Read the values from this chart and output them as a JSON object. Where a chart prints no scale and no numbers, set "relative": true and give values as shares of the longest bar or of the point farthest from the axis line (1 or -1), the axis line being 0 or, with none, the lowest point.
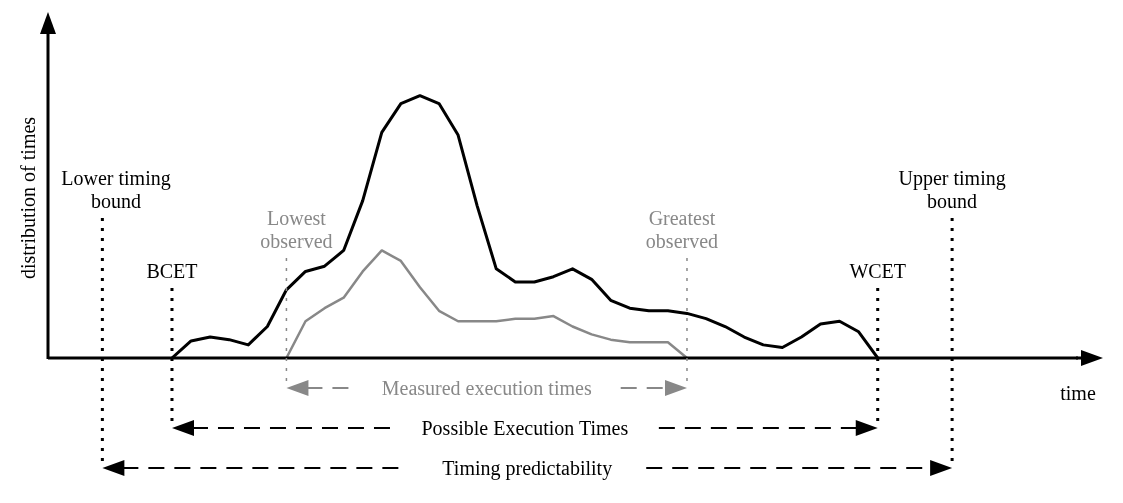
{
  "chart_data": {
    "type": "line",
    "relative": true,
    "ylabel": "distribution of times",
    "xlabel": "time",
    "marker": "none",
    "categories": [
      null,
      null,
      null,
      null,
      null,
      null,
      null,
      null,
      null,
      null,
      null,
      null,
      null,
      null,
      null,
      null,
      null,
      null,
      null,
      null,
      null,
      null,
      null,
      null,
      null,
      null,
      null,
      null,
      null,
      null,
      null,
      null,
      null,
      null,
      null,
      null,
      null,
      null,
      null,
      null,
      null,
      null,
      null,
      null,
      null,
      null,
      null,
      null,
      null,
      null,
      null,
      null,
      null,
      null
    ],
    "series": [
      {
        "color": "#000000",
        "values": [
          null,
          null,
          null,
          null,
          null,
          null,
          0,
          0.065,
          0.08,
          0.07,
          0.05,
          0.12,
          0.26,
          0.33,
          0.35,
          0.41,
          0.6,
          0.86,
          0.97,
          1,
          0.97,
          0.85,
          0.58,
          0.34,
          0.29,
          0.29,
          0.31,
          0.34,
          0.3,
          0.22,
          0.19,
          0.18,
          0.18,
          0.17,
          0.15,
          0.12,
          0.08,
          0.05,
          0.04,
          0.08,
          0.13,
          0.14,
          0.1,
          0,
          null,
          null,
          null,
          null,
          null,
          null,
          null,
          null,
          null,
          null
        ]
      },
      {
        "color": "#888888",
        "values": [
          null,
          null,
          null,
          null,
          null,
          null,
          null,
          null,
          null,
          null,
          null,
          null,
          0,
          0.14,
          0.19,
          0.23,
          0.33,
          0.41,
          0.37,
          0.27,
          0.18,
          0.14,
          0.14,
          0.14,
          0.15,
          0.15,
          0.16,
          0.12,
          0.09,
          0.07,
          0.06,
          0.06,
          0.06,
          0,
          null,
          null,
          null,
          null,
          null,
          null,
          null,
          null,
          null,
          null,
          null,
          null,
          null,
          null,
          null,
          null,
          null,
          null,
          null,
          null
        ]
      }
    ],
    "annotations": [
      "Lower timing bound",
      "BCET",
      "Lowest observed",
      "Greatest observed",
      "WCET",
      "Upper timing bound",
      "Measured execution times",
      "Possible Execution Times",
      "Timing predictability"
    ]
  }
}
